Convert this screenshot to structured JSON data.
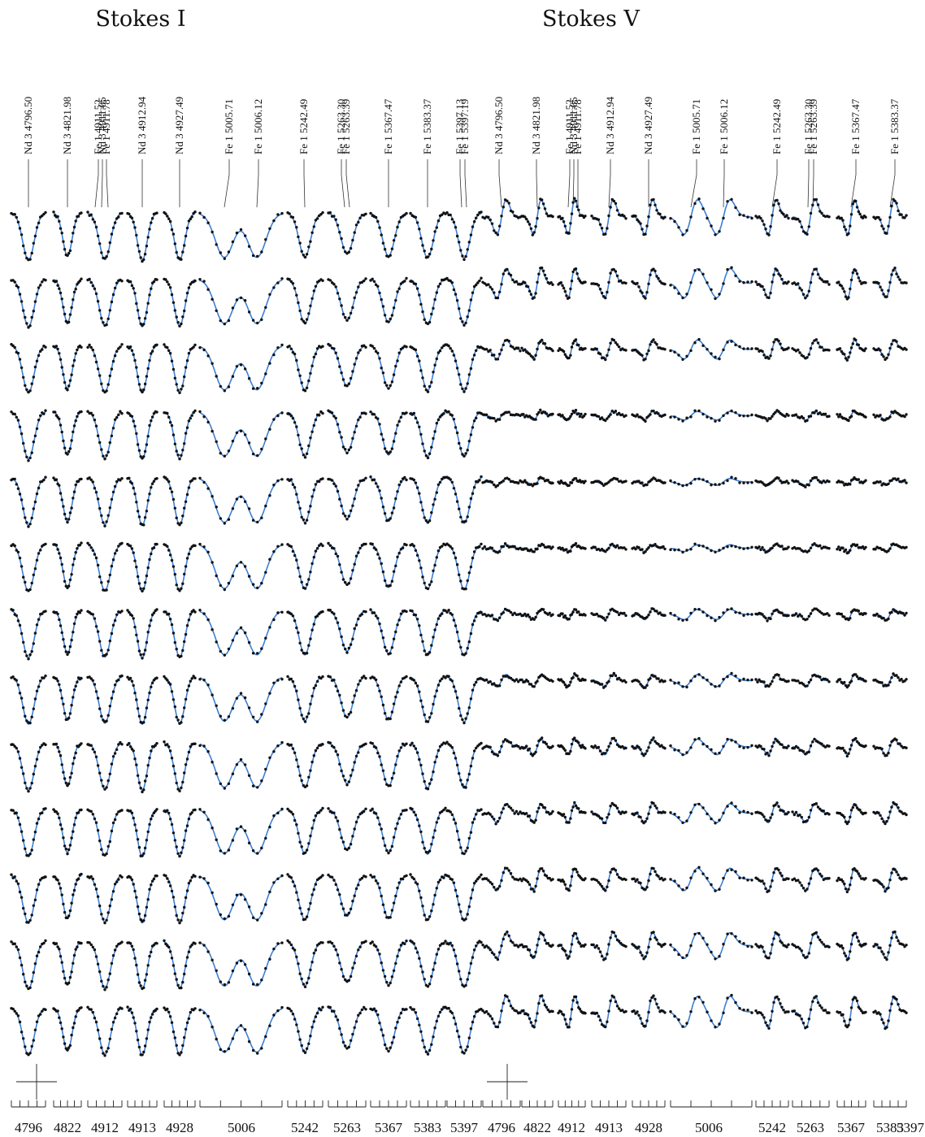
{
  "chart_data": [
    {
      "type": "line",
      "title": "Stokes I",
      "n_phases": 13,
      "series": [
        {
          "name": "observed",
          "style": "points",
          "color": "#111111"
        },
        {
          "name": "model",
          "style": "line",
          "color": "#3b7fd6"
        }
      ],
      "line_labels": [
        "Nd 3 4796.50",
        "Nd 3 4821.98",
        "Fe 1 4911.52",
        "Nd 3 4911.65",
        "Fe 1 4911.78",
        "Nd 3 4912.94",
        "Nd 3 4927.49",
        "Fe 1 5005.71",
        "Fe 1 5006.12",
        "Fe 1 5242.49",
        "Fe 1 5263.30",
        "Fe 1 5263.39",
        "Fe 1 5367.47",
        "Fe 1 5383.37",
        "Fe 1 5397.13",
        "Fe 1 5397.19"
      ],
      "x_tick_labels": [
        "4796",
        "4822",
        "4912",
        "4913",
        "4928",
        "5006",
        "5242",
        "5263",
        "5367",
        "5383",
        "5397"
      ],
      "line_depths": [
        0.9,
        0.55,
        0.82,
        0.9,
        0.85,
        0.65,
        0.65,
        0.35,
        0.55,
        0.7,
        0.72,
        0.72
      ]
    },
    {
      "type": "line",
      "title": "Stokes V",
      "n_phases": 13,
      "series": [
        {
          "name": "observed",
          "style": "points",
          "color": "#111111"
        },
        {
          "name": "model",
          "style": "line",
          "color": "#3b7fd6"
        }
      ],
      "line_labels": [
        "Nd 3 4796.50",
        "Nd 3 4821.98",
        "Fe 1 4911.52",
        "Nd 3 4911.65",
        "Fe 1 4911.78",
        "Nd 3 4912.94",
        "Nd 3 4927.49",
        "Fe 1 5005.71",
        "Fe 1 5006.12",
        "Fe 1 5242.49",
        "Fe 1 5263.30",
        "Fe 1 5263.39",
        "Fe 1 5367.47",
        "Fe 1 5383.37"
      ],
      "x_tick_labels": [
        "4796",
        "4822",
        "4912",
        "4913",
        "4928",
        "5006",
        "5242",
        "5263",
        "5367",
        "5383",
        "5397"
      ],
      "phase_amplitudes": [
        1.0,
        0.85,
        0.55,
        0.25,
        0.2,
        0.2,
        0.3,
        0.35,
        0.45,
        0.55,
        0.65,
        0.75,
        0.9
      ]
    }
  ]
}
